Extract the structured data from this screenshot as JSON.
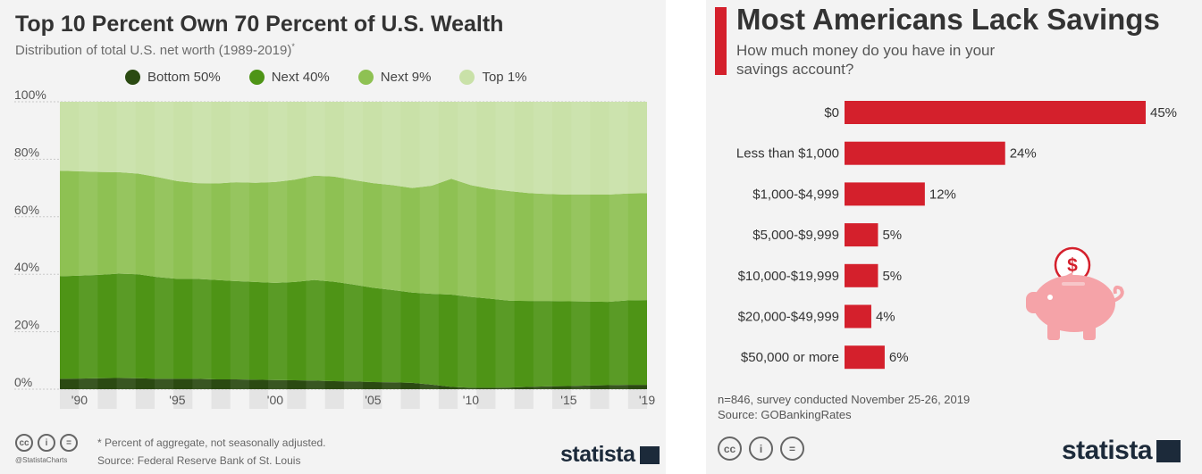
{
  "left": {
    "title": "Top 10 Percent Own 70 Percent of U.S. Wealth",
    "subtitle": "Distribution of total U.S. net worth (1989-2019)",
    "subtitle_mark": "*",
    "legend": [
      {
        "label": "Bottom 50%",
        "color": "#2b4a12"
      },
      {
        "label": "Next 40%",
        "color": "#4e9416"
      },
      {
        "label": "Next 9%",
        "color": "#8ec153"
      },
      {
        "label": "Top 1%",
        "color": "#c9e1a8"
      }
    ],
    "footnote": "* Percent of aggregate, not seasonally adjusted.",
    "source": "Source: Federal Reserve Bank of St. Louis",
    "handle": "@StatistaCharts",
    "brand": "statista"
  },
  "right": {
    "title": "Most Americans Lack Savings",
    "subtitle_line1": "How much money do you have in your",
    "subtitle_line2": "savings account?",
    "note": "n=846, survey conducted November 25-26, 2019",
    "source": "Source: GOBankingRates",
    "brand": "statista",
    "bar_color": "#d4202c"
  },
  "chart_data": [
    {
      "type": "area",
      "title": "Top 10 Percent Own 70 Percent of U.S. Wealth",
      "subtitle": "Distribution of total U.S. net worth (1989-2019)*",
      "x": [
        1989,
        1990,
        1991,
        1992,
        1993,
        1994,
        1995,
        1996,
        1997,
        1998,
        1999,
        2000,
        2001,
        2002,
        2003,
        2004,
        2005,
        2006,
        2007,
        2008,
        2009,
        2010,
        2011,
        2012,
        2013,
        2014,
        2015,
        2016,
        2017,
        2018,
        2019
      ],
      "x_tick_labels": [
        "'90",
        "'95",
        "'00",
        "'05",
        "'10",
        "'15",
        "'19"
      ],
      "x_tick_years": [
        1990,
        1995,
        2000,
        2005,
        2010,
        2015,
        2019
      ],
      "y_ticks": [
        "0%",
        "20%",
        "40%",
        "60%",
        "80%",
        "100%"
      ],
      "ylim": [
        0,
        100
      ],
      "stacked": true,
      "series": [
        {
          "name": "Bottom 50%",
          "values": [
            3.6,
            3.7,
            3.8,
            3.9,
            3.8,
            3.6,
            3.6,
            3.6,
            3.4,
            3.4,
            3.3,
            3.2,
            3.1,
            3.0,
            2.8,
            2.7,
            2.5,
            2.4,
            2.2,
            1.6,
            0.8,
            0.5,
            0.5,
            0.6,
            0.8,
            1.0,
            1.1,
            1.3,
            1.4,
            1.5,
            1.5
          ]
        },
        {
          "name": "Next 40%",
          "values": [
            35.7,
            35.8,
            36.0,
            36.3,
            36.2,
            35.4,
            34.8,
            34.8,
            34.6,
            34.2,
            34.0,
            33.8,
            34.2,
            35.0,
            34.6,
            33.7,
            32.8,
            32.1,
            31.4,
            31.6,
            32.1,
            31.6,
            31.0,
            30.2,
            29.9,
            29.7,
            29.5,
            29.2,
            29.0,
            29.4,
            29.5
          ]
        },
        {
          "name": "Next 9%",
          "values": [
            36.7,
            36.3,
            35.8,
            35.3,
            35.0,
            34.8,
            34.0,
            33.3,
            33.6,
            34.4,
            34.5,
            35.1,
            35.6,
            36.3,
            36.6,
            36.4,
            36.4,
            36.5,
            36.4,
            37.6,
            40.3,
            38.9,
            38.2,
            38.1,
            37.5,
            37.2,
            37.1,
            37.2,
            37.3,
            37.2,
            37.2
          ]
        },
        {
          "name": "Top 1%",
          "values": [
            24.0,
            24.2,
            24.4,
            24.5,
            25.0,
            26.2,
            27.6,
            28.3,
            28.4,
            28.0,
            28.2,
            27.9,
            27.1,
            25.7,
            26.0,
            27.2,
            28.3,
            29.0,
            30.0,
            29.2,
            26.8,
            29.0,
            30.3,
            31.1,
            31.8,
            32.1,
            32.3,
            32.3,
            32.3,
            31.9,
            31.8
          ]
        }
      ]
    },
    {
      "type": "bar",
      "orientation": "horizontal",
      "title": "Most Americans Lack Savings",
      "subtitle": "How much money do you have in your savings account?",
      "categories": [
        "$0",
        "Less than $1,000",
        "$1,000-$4,999",
        "$5,000-$9,999",
        "$10,000-$19,999",
        "$20,000-$49,999",
        "$50,000 or more"
      ],
      "values": [
        45,
        24,
        12,
        5,
        5,
        4,
        6
      ],
      "value_labels": [
        "45%",
        "24%",
        "12%",
        "5%",
        "5%",
        "4%",
        "6%"
      ],
      "xlim": [
        0,
        45
      ]
    }
  ]
}
